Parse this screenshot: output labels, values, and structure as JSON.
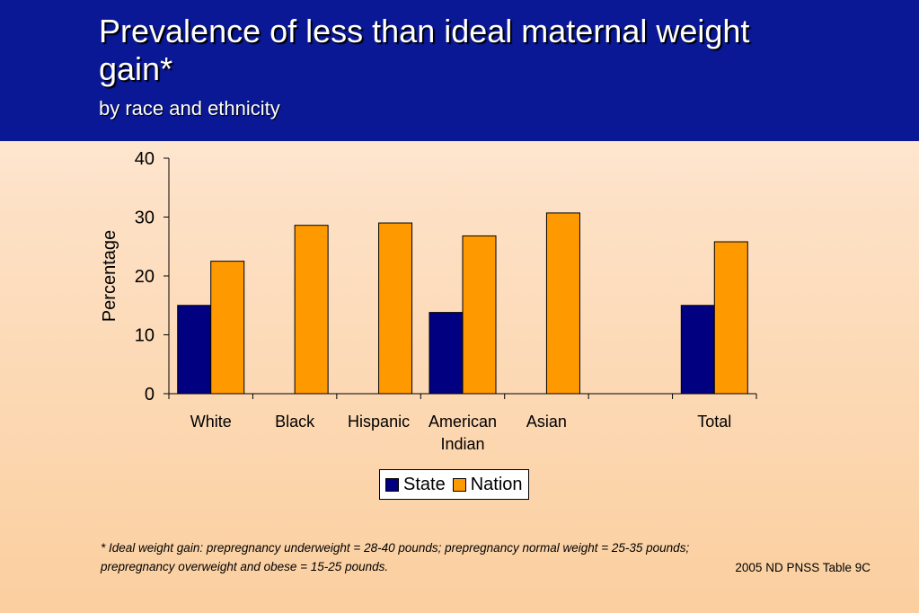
{
  "title": "Prevalence of less than ideal maternal weight gain*",
  "subtitle": "by race and ethnicity",
  "chart_data": {
    "type": "bar",
    "ylabel": "Percentage",
    "xlabel": "",
    "ylim": [
      0,
      40
    ],
    "yticks": [
      0,
      10,
      20,
      30,
      40
    ],
    "categories": [
      "White",
      "Black",
      "Hispanic",
      "American Indian",
      "Asian",
      "",
      "Total"
    ],
    "category_lines": [
      [
        "White"
      ],
      [
        "Black"
      ],
      [
        "Hispanic"
      ],
      [
        "American",
        "Indian"
      ],
      [
        "Asian"
      ],
      [],
      [
        "Total"
      ]
    ],
    "series": [
      {
        "name": "State",
        "color": "#000080",
        "values": [
          15,
          null,
          null,
          13.8,
          null,
          null,
          15
        ]
      },
      {
        "name": "Nation",
        "color": "#ff9900",
        "values": [
          22.5,
          28.6,
          29,
          26.8,
          30.7,
          null,
          25.8
        ]
      }
    ],
    "legend_position": "bottom",
    "grid": false
  },
  "footnote": "*  Ideal weight gain: prepregnancy underweight = 28-40 pounds; prepregnancy normal weight = 25-35 pounds;\n   prepregnancy overweight and obese = 15-25 pounds.",
  "source": "2005 ND PNSS Table 9C"
}
